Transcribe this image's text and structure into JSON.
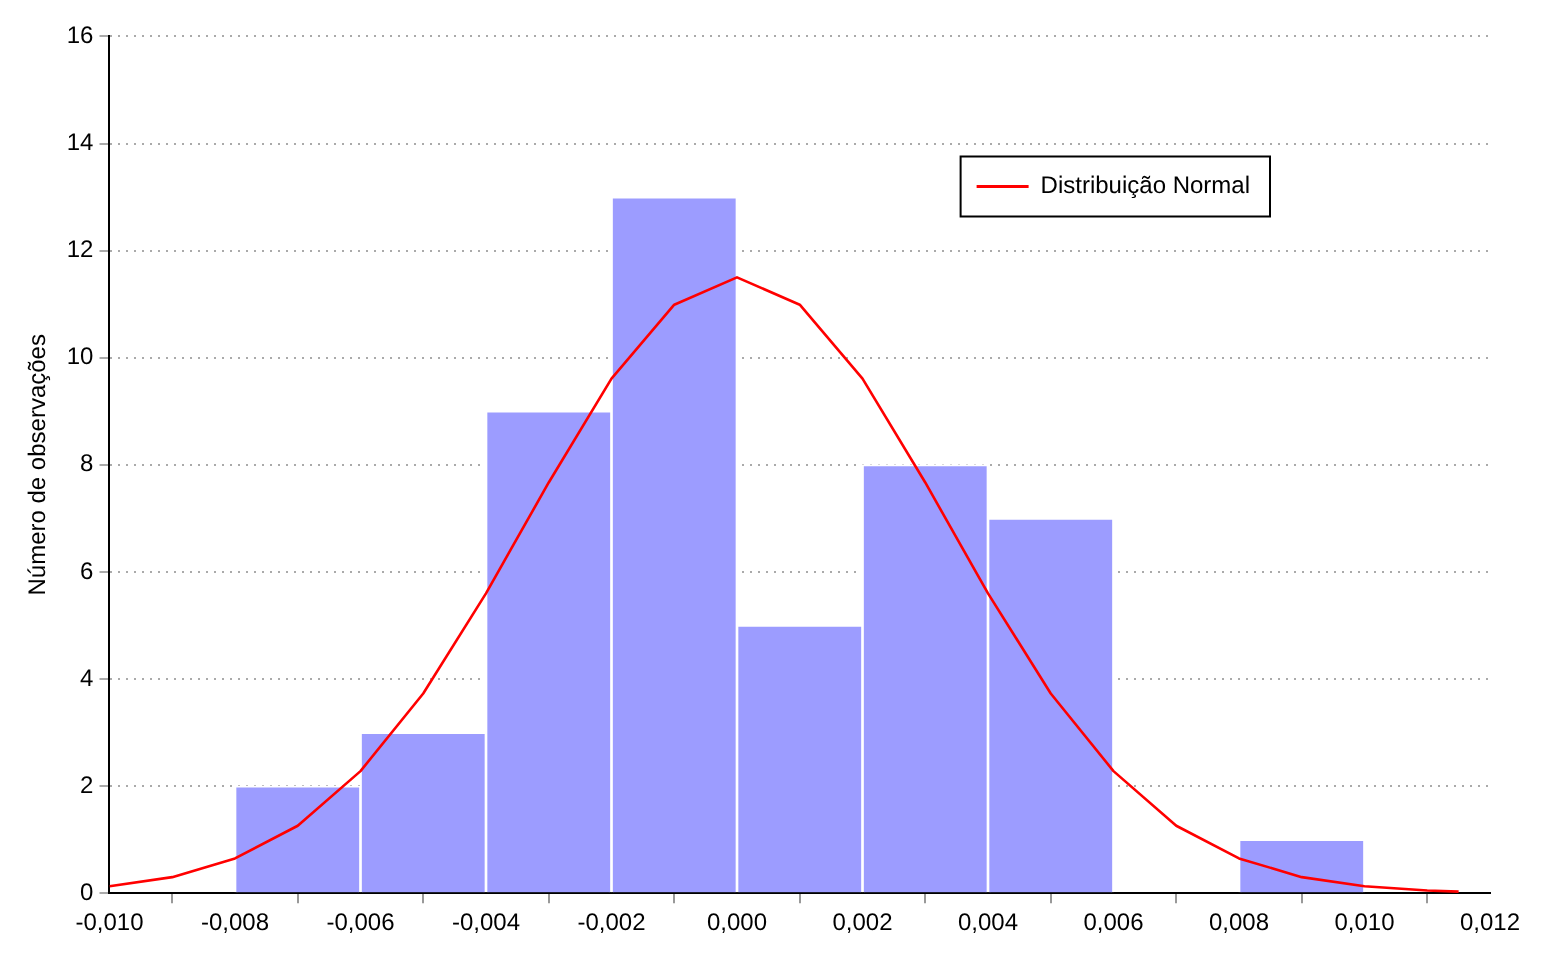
{
  "chart_data": {
    "type": "histogram",
    "ylabel": "Número de observações",
    "bins": [
      -0.01,
      -0.008,
      -0.006,
      -0.004,
      -0.002,
      0.0,
      0.002,
      0.004,
      0.006,
      0.008,
      0.01
    ],
    "values": [
      0,
      2,
      3,
      9,
      13,
      5,
      8,
      7,
      0,
      1
    ],
    "color": "#9c9cff",
    "series": [
      {
        "type": "line",
        "name": "Distribuição Normal",
        "color": "#ff0000",
        "x": [
          -0.01,
          -0.009,
          -0.008,
          -0.007,
          -0.006,
          -0.005,
          -0.004,
          -0.003,
          -0.002,
          -0.001,
          0.0,
          0.001,
          0.002,
          0.003,
          0.004,
          0.005,
          0.006,
          0.007,
          0.008,
          0.009,
          0.01,
          0.011,
          0.0115
        ],
        "values": [
          0.13,
          0.3,
          0.65,
          1.26,
          2.28,
          3.73,
          5.6,
          7.67,
          9.61,
          10.99,
          11.5,
          10.99,
          9.61,
          7.67,
          5.6,
          3.73,
          2.28,
          1.26,
          0.65,
          0.3,
          0.13,
          0.05,
          0.03
        ]
      }
    ],
    "xlim": [
      -0.01,
      0.012
    ],
    "xticks": [
      {
        "value": -0.01,
        "label": "-0,010"
      },
      {
        "value": -0.008,
        "label": "-0,008"
      },
      {
        "value": -0.006,
        "label": "-0,006"
      },
      {
        "value": -0.004,
        "label": "-0,004"
      },
      {
        "value": -0.002,
        "label": "-0,002"
      },
      {
        "value": 0.0,
        "label": "0,000"
      },
      {
        "value": 0.002,
        "label": "0,002"
      },
      {
        "value": 0.004,
        "label": "0,004"
      },
      {
        "value": 0.006,
        "label": "0,006"
      },
      {
        "value": 0.008,
        "label": "0,008"
      },
      {
        "value": 0.01,
        "label": "0,010"
      },
      {
        "value": 0.012,
        "label": "0,012"
      }
    ],
    "ylim": [
      0,
      16
    ],
    "yticks": [
      0,
      2,
      4,
      6,
      8,
      10,
      12,
      14,
      16
    ],
    "grid": "y",
    "legend": "top right",
    "marker": "none"
  }
}
